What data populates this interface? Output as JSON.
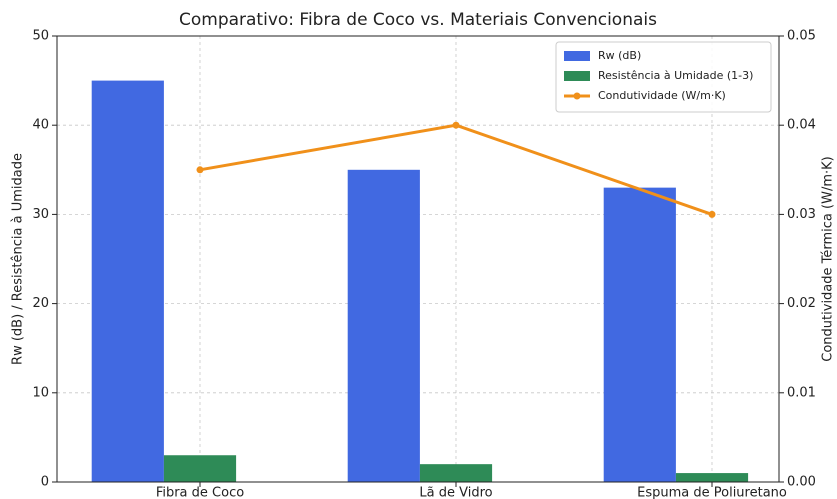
{
  "chart_data": {
    "type": "bar_line",
    "title": "Comparativo: Fibra de Coco vs. Materiais Convencionais",
    "ylabel": "Rw (dB) / Resistência à Umidade",
    "y2label": "Condutividade Térmica (W/m·K)",
    "categories": [
      "Fibra de Coco",
      "Lã de Vidro",
      "Espuma de Poliuretano"
    ],
    "series": [
      {
        "name": "Rw (dB)",
        "color": "#4169e1",
        "type": "bar",
        "values": [
          45,
          35,
          33
        ]
      },
      {
        "name": "Resistência à Umidade (1-3)",
        "color": "#2e8b57",
        "type": "bar",
        "values": [
          3,
          2,
          1
        ]
      },
      {
        "name": "Condutividade (W/m·K)",
        "color": "#f0901a",
        "type": "line",
        "axis": "y2",
        "values": [
          0.035,
          0.04,
          0.03
        ]
      }
    ],
    "ylim": [
      0,
      50
    ],
    "yticks": [
      0,
      10,
      20,
      30,
      40,
      50
    ],
    "y2lim": [
      0,
      0.05
    ],
    "y2ticks": [
      {
        "value": 0,
        "label": "0.00"
      },
      0.01,
      0.02,
      0.03,
      0.04,
      0.05
    ],
    "grid": true,
    "legend": "upper right"
  }
}
